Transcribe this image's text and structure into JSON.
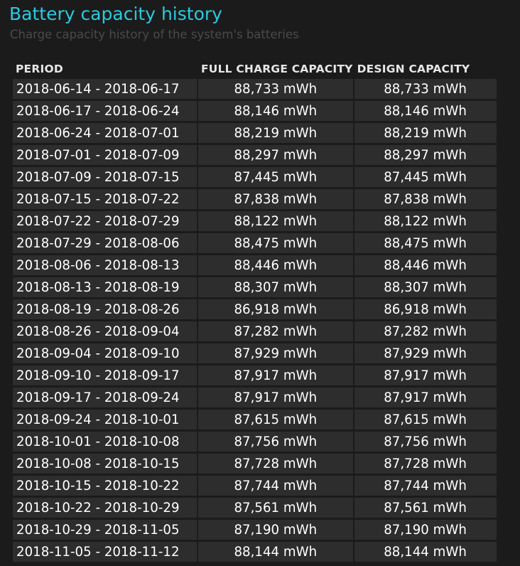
{
  "header": {
    "title": "Battery capacity history",
    "subtitle": "Charge capacity history of the system's batteries"
  },
  "table": {
    "columns": [
      "PERIOD",
      "FULL CHARGE CAPACITY",
      "DESIGN CAPACITY"
    ],
    "rows": [
      {
        "period": "2018-06-14 - 2018-06-17",
        "full_charge": "88,733 mWh",
        "design": "88,733 mWh"
      },
      {
        "period": "2018-06-17 - 2018-06-24",
        "full_charge": "88,146 mWh",
        "design": "88,146 mWh"
      },
      {
        "period": "2018-06-24 - 2018-07-01",
        "full_charge": "88,219 mWh",
        "design": "88,219 mWh"
      },
      {
        "period": "2018-07-01 - 2018-07-09",
        "full_charge": "88,297 mWh",
        "design": "88,297 mWh"
      },
      {
        "period": "2018-07-09 - 2018-07-15",
        "full_charge": "87,445 mWh",
        "design": "87,445 mWh"
      },
      {
        "period": "2018-07-15 - 2018-07-22",
        "full_charge": "87,838 mWh",
        "design": "87,838 mWh"
      },
      {
        "period": "2018-07-22 - 2018-07-29",
        "full_charge": "88,122 mWh",
        "design": "88,122 mWh"
      },
      {
        "period": "2018-07-29 - 2018-08-06",
        "full_charge": "88,475 mWh",
        "design": "88,475 mWh"
      },
      {
        "period": "2018-08-06 - 2018-08-13",
        "full_charge": "88,446 mWh",
        "design": "88,446 mWh"
      },
      {
        "period": "2018-08-13 - 2018-08-19",
        "full_charge": "88,307 mWh",
        "design": "88,307 mWh"
      },
      {
        "period": "2018-08-19 - 2018-08-26",
        "full_charge": "86,918 mWh",
        "design": "86,918 mWh"
      },
      {
        "period": "2018-08-26 - 2018-09-04",
        "full_charge": "87,282 mWh",
        "design": "87,282 mWh"
      },
      {
        "period": "2018-09-04 - 2018-09-10",
        "full_charge": "87,929 mWh",
        "design": "87,929 mWh"
      },
      {
        "period": "2018-09-10 - 2018-09-17",
        "full_charge": "87,917 mWh",
        "design": "87,917 mWh"
      },
      {
        "period": "2018-09-17 - 2018-09-24",
        "full_charge": "87,917 mWh",
        "design": "87,917 mWh"
      },
      {
        "period": "2018-09-24 - 2018-10-01",
        "full_charge": "87,615 mWh",
        "design": "87,615 mWh"
      },
      {
        "period": "2018-10-01 - 2018-10-08",
        "full_charge": "87,756 mWh",
        "design": "87,756 mWh"
      },
      {
        "period": "2018-10-08 - 2018-10-15",
        "full_charge": "87,728 mWh",
        "design": "87,728 mWh"
      },
      {
        "period": "2018-10-15 - 2018-10-22",
        "full_charge": "87,744 mWh",
        "design": "87,744 mWh"
      },
      {
        "period": "2018-10-22 - 2018-10-29",
        "full_charge": "87,561 mWh",
        "design": "87,561 mWh"
      },
      {
        "period": "2018-10-29 - 2018-11-05",
        "full_charge": "87,190 mWh",
        "design": "87,190 mWh"
      },
      {
        "period": "2018-11-05 - 2018-11-12",
        "full_charge": "88,144 mWh",
        "design": "88,144 mWh"
      }
    ]
  },
  "colors": {
    "title": "#2bc9df",
    "subtitle": "#4a4a4a",
    "background": "#1b1b1b",
    "cell_background": "#2d2d2d",
    "text": "#ffffff"
  }
}
